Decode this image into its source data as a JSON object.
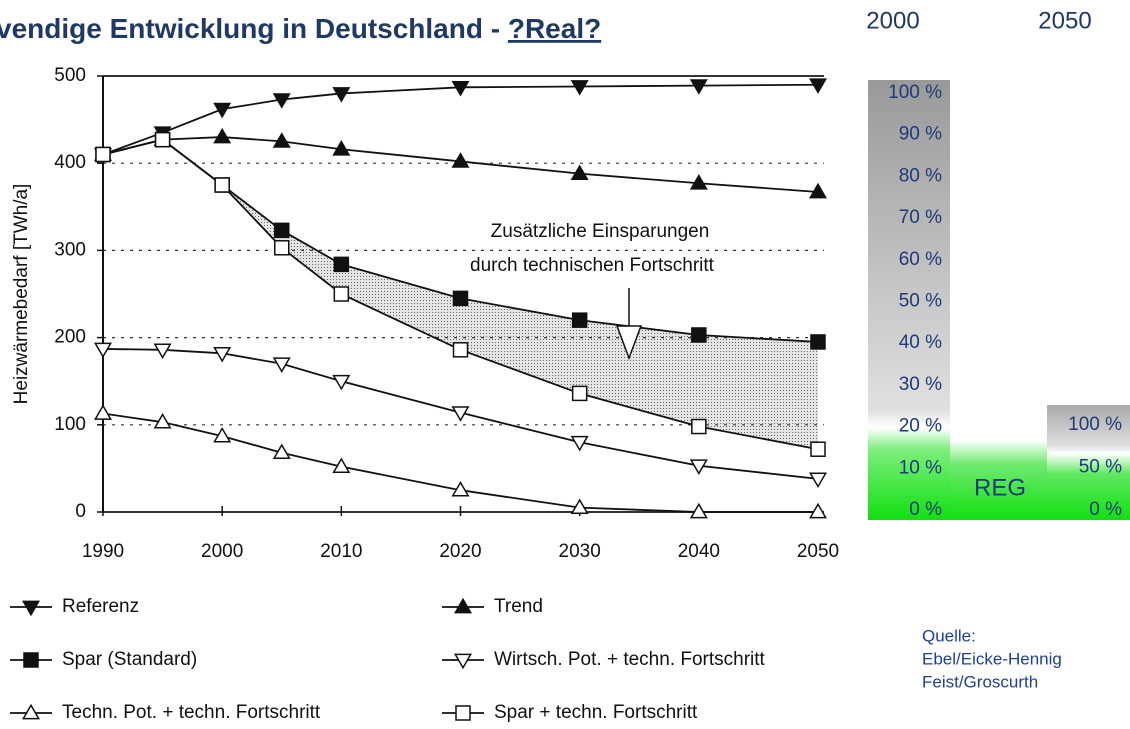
{
  "header": {
    "title": "vendige Entwicklung in Deutschland - ",
    "title_link": "?Real?",
    "column_headers": [
      "2000",
      "2050"
    ]
  },
  "scale_2000": [
    "100 %",
    "90 %",
    "80 %",
    "70 %",
    "60 %",
    "50 %",
    "40 %",
    "30 %",
    "20 %",
    "10 %",
    "0 %"
  ],
  "scale_2050": [
    "100 %",
    "50 %",
    "0 %"
  ],
  "reg_label": "REG",
  "source": [
    "Quelle:",
    "Ebel/Eicke-Hennig",
    "Feist/Groscurth"
  ],
  "chart_data": {
    "type": "line",
    "y_label": "Heizwärmebedarf [TWh/a]",
    "annotation": [
      "Zusätzliche Einsparungen",
      "durch technischen Fortschritt"
    ],
    "x": [
      1990,
      1995,
      2000,
      2005,
      2010,
      2020,
      2030,
      2040,
      2050
    ],
    "xlim": [
      1990,
      2050
    ],
    "xticks": [
      1990,
      2000,
      2010,
      2020,
      2030,
      2040,
      2050
    ],
    "ylim": [
      0,
      500
    ],
    "yticks": [
      0,
      100,
      200,
      300,
      400,
      500
    ],
    "grid": true,
    "series": [
      {
        "name": "Referenz",
        "color": "#111111",
        "marker": "triangle-down",
        "filled": true,
        "values": [
          410,
          435,
          462,
          473,
          480,
          487,
          488,
          489,
          490
        ]
      },
      {
        "name": "Trend",
        "color": "#111111",
        "marker": "triangle-up",
        "filled": true,
        "values": [
          410,
          427,
          430,
          425,
          416,
          402,
          388,
          377,
          367
        ]
      },
      {
        "name": "Spar (Standard)",
        "color": "#111111",
        "marker": "square",
        "filled": true,
        "values": [
          410,
          427,
          375,
          323,
          284,
          245,
          220,
          203,
          195
        ]
      },
      {
        "name": "Wirtsch. Pot. + techn. Fortschritt",
        "color": "#111111",
        "marker": "triangle-down",
        "filled": false,
        "values": [
          187,
          186,
          182,
          170,
          150,
          114,
          80,
          53,
          38
        ]
      },
      {
        "name": "Techn. Pot. + techn. Fortschritt",
        "color": "#111111",
        "marker": "triangle-up",
        "filled": false,
        "values": [
          113,
          103,
          87,
          68,
          52,
          25,
          5,
          0,
          0
        ]
      },
      {
        "name": "Spar + techn. Fortschritt",
        "color": "#111111",
        "marker": "square",
        "filled": false,
        "values": [
          410,
          427,
          375,
          303,
          250,
          186,
          136,
          98,
          72
        ]
      }
    ]
  }
}
